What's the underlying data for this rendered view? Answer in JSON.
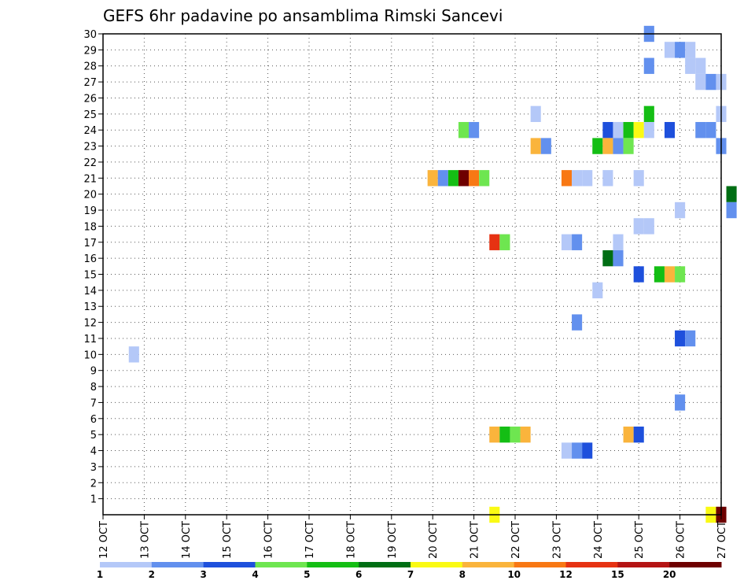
{
  "chart_data": {
    "type": "heatmap",
    "title": "GEFS 6hr padavine po ansamblima Rimski Sancevi",
    "x_ticks": [
      "12 OCT",
      "13 OCT",
      "14 OCT",
      "15 OCT",
      "16 OCT",
      "17 OCT",
      "18 OCT",
      "19 OCT",
      "20 OCT",
      "21 OCT",
      "22 OCT",
      "23 OCT",
      "24 OCT",
      "25 OCT",
      "26 OCT",
      "27 OCT"
    ],
    "y_ticks": [
      "1",
      "2",
      "3",
      "4",
      "5",
      "6",
      "7",
      "8",
      "9",
      "10",
      "11",
      "12",
      "13",
      "14",
      "15",
      "16",
      "17",
      "18",
      "19",
      "20",
      "21",
      "22",
      "23",
      "24",
      "25",
      "26",
      "27",
      "28",
      "29",
      "30"
    ],
    "x_range_days": [
      0,
      15
    ],
    "y_range": [
      0,
      30
    ],
    "grid": true,
    "legend_placement": "bottom",
    "levels": [
      {
        "label": "1",
        "color": "#b4c8f8"
      },
      {
        "label": "2",
        "color": "#6290ee"
      },
      {
        "label": "3",
        "color": "#1e50dc"
      },
      {
        "label": "4",
        "color": "#6ee650"
      },
      {
        "label": "5",
        "color": "#14be14"
      },
      {
        "label": "6",
        "color": "#006e14"
      },
      {
        "label": "7",
        "color": "#fafa14"
      },
      {
        "label": "8",
        "color": "#fab43c"
      },
      {
        "label": "10",
        "color": "#f87814"
      },
      {
        "label": "12",
        "color": "#e63212"
      },
      {
        "label": "15",
        "color": "#b41414"
      },
      {
        "label": "20",
        "color": "#6e0000"
      }
    ],
    "cells": [
      {
        "member": 30,
        "day": 13.25,
        "level": 2
      },
      {
        "member": 29,
        "day": 13.75,
        "level": 1
      },
      {
        "member": 29,
        "day": 14.0,
        "level": 2
      },
      {
        "member": 29,
        "day": 14.25,
        "level": 1
      },
      {
        "member": 28,
        "day": 13.25,
        "level": 2
      },
      {
        "member": 28,
        "day": 14.25,
        "level": 1
      },
      {
        "member": 28,
        "day": 14.5,
        "level": 1
      },
      {
        "member": 27,
        "day": 14.5,
        "level": 1
      },
      {
        "member": 27,
        "day": 14.75,
        "level": 2
      },
      {
        "member": 27,
        "day": 15.0,
        "level": 1
      },
      {
        "member": 25,
        "day": 10.5,
        "level": 1
      },
      {
        "member": 25,
        "day": 13.25,
        "level": 5
      },
      {
        "member": 25,
        "day": 15.0,
        "level": 1
      },
      {
        "member": 24,
        "day": 8.75,
        "level": 4
      },
      {
        "member": 24,
        "day": 9.0,
        "level": 2
      },
      {
        "member": 24,
        "day": 12.25,
        "level": 3
      },
      {
        "member": 24,
        "day": 12.5,
        "level": 1
      },
      {
        "member": 24,
        "day": 12.75,
        "level": 5
      },
      {
        "member": 24,
        "day": 13.0,
        "level": 7
      },
      {
        "member": 24,
        "day": 13.25,
        "level": 1
      },
      {
        "member": 24,
        "day": 13.75,
        "level": 3
      },
      {
        "member": 24,
        "day": 14.5,
        "level": 2
      },
      {
        "member": 24,
        "day": 14.75,
        "level": 2
      },
      {
        "member": 23,
        "day": 10.5,
        "level": 8
      },
      {
        "member": 23,
        "day": 10.75,
        "level": 2
      },
      {
        "member": 23,
        "day": 12.0,
        "level": 5
      },
      {
        "member": 23,
        "day": 12.25,
        "level": 8
      },
      {
        "member": 23,
        "day": 12.5,
        "level": 2
      },
      {
        "member": 23,
        "day": 12.75,
        "level": 4
      },
      {
        "member": 23,
        "day": 15.0,
        "level": 2
      },
      {
        "member": 21,
        "day": 8.0,
        "level": 8
      },
      {
        "member": 21,
        "day": 8.25,
        "level": 2
      },
      {
        "member": 21,
        "day": 8.5,
        "level": 5
      },
      {
        "member": 21,
        "day": 8.75,
        "level": 20
      },
      {
        "member": 21,
        "day": 9.0,
        "level": 10
      },
      {
        "member": 21,
        "day": 9.25,
        "level": 4
      },
      {
        "member": 21,
        "day": 11.25,
        "level": 10
      },
      {
        "member": 21,
        "day": 11.5,
        "level": 1
      },
      {
        "member": 21,
        "day": 11.75,
        "level": 1
      },
      {
        "member": 21,
        "day": 12.25,
        "level": 1
      },
      {
        "member": 21,
        "day": 13.0,
        "level": 1
      },
      {
        "member": 20,
        "day": 15.25,
        "level": 6
      },
      {
        "member": 19,
        "day": 14.0,
        "level": 1
      },
      {
        "member": 19,
        "day": 15.25,
        "level": 2
      },
      {
        "member": 18,
        "day": 13.0,
        "level": 1
      },
      {
        "member": 18,
        "day": 13.25,
        "level": 1
      },
      {
        "member": 17,
        "day": 9.5,
        "level": 12
      },
      {
        "member": 17,
        "day": 9.75,
        "level": 4
      },
      {
        "member": 17,
        "day": 11.25,
        "level": 1
      },
      {
        "member": 17,
        "day": 11.5,
        "level": 2
      },
      {
        "member": 17,
        "day": 12.5,
        "level": 1
      },
      {
        "member": 16,
        "day": 12.25,
        "level": 6
      },
      {
        "member": 16,
        "day": 12.5,
        "level": 2
      },
      {
        "member": 15,
        "day": 13.0,
        "level": 3
      },
      {
        "member": 15,
        "day": 13.5,
        "level": 5
      },
      {
        "member": 15,
        "day": 13.75,
        "level": 8
      },
      {
        "member": 15,
        "day": 14.0,
        "level": 4
      },
      {
        "member": 14,
        "day": 12.0,
        "level": 1
      },
      {
        "member": 12,
        "day": 11.5,
        "level": 2
      },
      {
        "member": 11,
        "day": 14.0,
        "level": 3
      },
      {
        "member": 11,
        "day": 14.25,
        "level": 2
      },
      {
        "member": 10,
        "day": 0.75,
        "level": 1
      },
      {
        "member": 7,
        "day": 14.0,
        "level": 2
      },
      {
        "member": 5,
        "day": 9.5,
        "level": 8
      },
      {
        "member": 5,
        "day": 9.75,
        "level": 5
      },
      {
        "member": 5,
        "day": 10.0,
        "level": 4
      },
      {
        "member": 5,
        "day": 10.25,
        "level": 8
      },
      {
        "member": 5,
        "day": 12.75,
        "level": 8
      },
      {
        "member": 5,
        "day": 13.0,
        "level": 3
      },
      {
        "member": 4,
        "day": 11.25,
        "level": 1
      },
      {
        "member": 4,
        "day": 11.5,
        "level": 2
      },
      {
        "member": 4,
        "day": 11.75,
        "level": 3
      },
      {
        "member": 0,
        "day": 9.5,
        "level": 7
      },
      {
        "member": 0,
        "day": 14.75,
        "level": 7
      },
      {
        "member": 0,
        "day": 15.0,
        "level": 20
      }
    ]
  }
}
